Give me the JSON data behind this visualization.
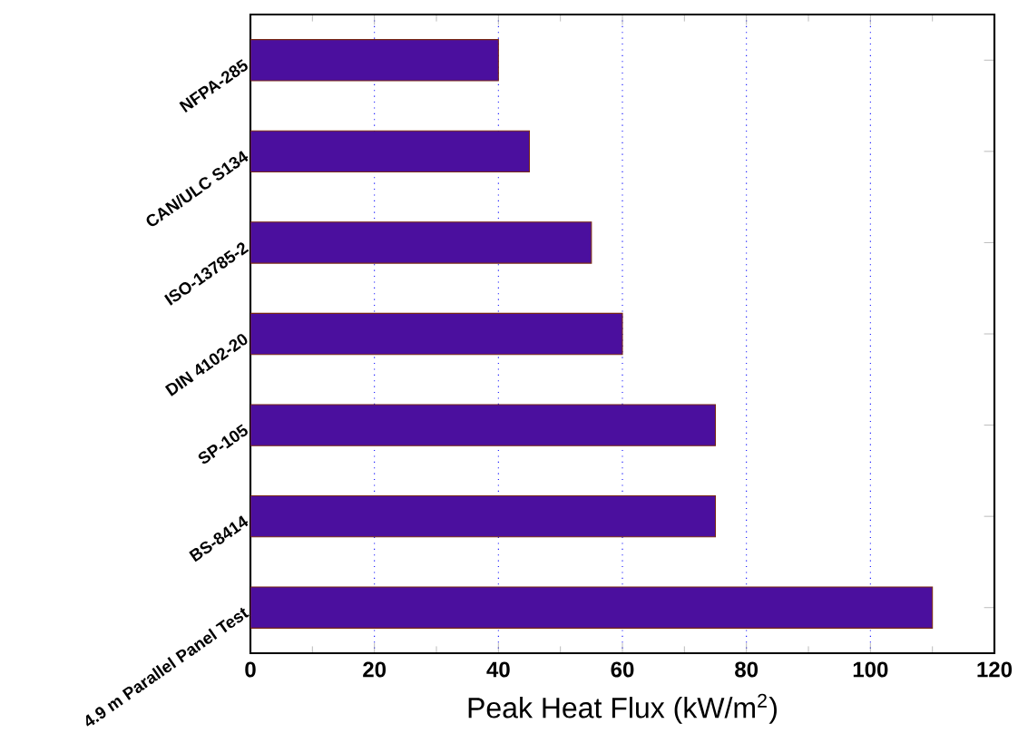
{
  "chart_data": {
    "type": "bar",
    "orientation": "horizontal",
    "categories": [
      "NFPA-285",
      "CAN/ULC S134",
      "ISO-13785-2",
      "DIN 4102-20",
      "SP-105",
      "BS-8414",
      "4.9 m Parallel Panel Test"
    ],
    "values": [
      40,
      45,
      55,
      60,
      75,
      75,
      110
    ],
    "color": "#4b0f9e",
    "xlabel": "Peak Heat Flux (kW/m$^{2}$)",
    "xlim": [
      0,
      120
    ],
    "xticks": [
      0,
      20,
      40,
      60,
      80,
      100,
      120
    ],
    "grid": "x"
  }
}
